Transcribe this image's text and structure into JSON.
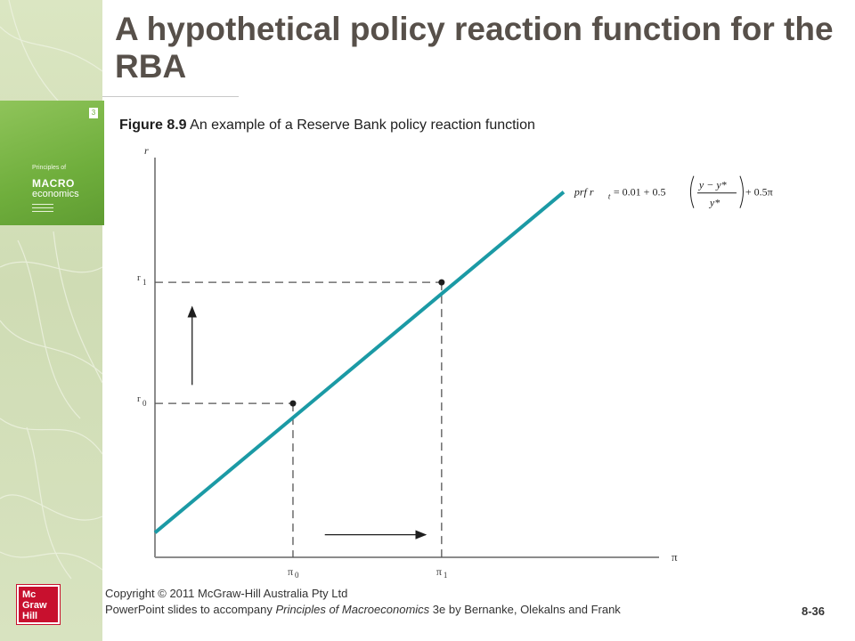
{
  "slide": {
    "title": "A hypothetical policy reaction function for the RBA",
    "figure_label": "Figure 8.9",
    "figure_caption": "An example of a Reserve Bank policy reaction function",
    "copyright": "Copyright © 2011 McGraw-Hill Australia Pty Ltd",
    "footer_pre": "PowerPoint slides to accompany ",
    "footer_book": "Principles of Macroeconomics",
    "footer_post": " 3e by Bernanke, Olekalns and Frank",
    "slide_number": "8-36"
  },
  "book_cover": {
    "edition": "3",
    "line1": "Principles of",
    "line2": "",
    "word1": "MACRO",
    "word2": "economics"
  },
  "logo": {
    "lines": [
      "Mc",
      "Graw",
      "Hill"
    ]
  },
  "colors": {
    "line": "#1b9aa5",
    "axis": "#8c8c8c",
    "title": "#57504a"
  },
  "chart_data": {
    "type": "line",
    "xlabel": "π",
    "ylabel": "r",
    "line_label_prefix": "prf r",
    "line_label_sub": "t",
    "line_label_eq": " = 0.01 + 0.5",
    "line_label_num": "y − y*",
    "line_label_den": "y*",
    "line_label_tail": " + 0.5π",
    "xlim": [
      0,
      10
    ],
    "ylim": [
      0,
      10
    ],
    "line": {
      "x": [
        0,
        7.7
      ],
      "y": [
        0.6,
        8.9
      ]
    },
    "points": [
      {
        "x": 2.6,
        "y": 3.75,
        "xtick": "π",
        "xtick_sub": "0",
        "ytick": "r",
        "ytick_sub": "0"
      },
      {
        "x": 5.4,
        "y": 6.7,
        "xtick": "π",
        "xtick_sub": "1",
        "ytick": "r",
        "ytick_sub": "1"
      }
    ],
    "arrows": [
      {
        "direction": "up",
        "x": 0.7,
        "y0": 4.2,
        "y1": 6.1
      },
      {
        "direction": "right",
        "y": 0.55,
        "x0": 3.2,
        "x1": 5.1
      }
    ],
    "grid": false
  }
}
